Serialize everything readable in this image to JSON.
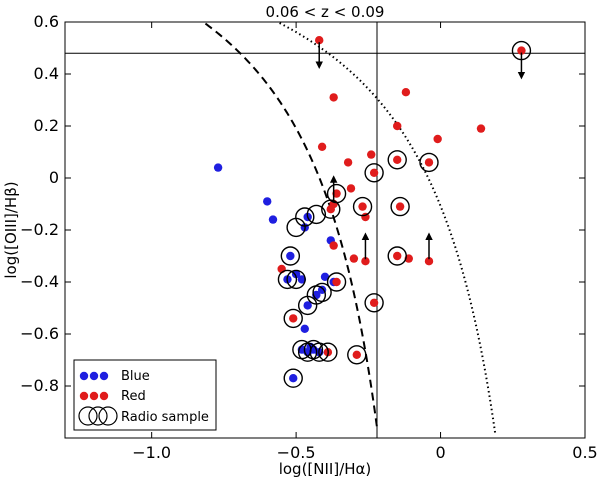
{
  "chart_data": {
    "type": "scatter",
    "title": "0.06 < z < 0.09",
    "xlabel": "log([NII]/Hα)",
    "ylabel": "log([OIII]/Hβ)",
    "xlim": [
      -1.3,
      0.5
    ],
    "ylim": [
      -1.0,
      0.6
    ],
    "xticks": [
      -1.0,
      -0.5,
      0,
      0.5
    ],
    "xtick_labels": [
      "−1.0",
      "−0.5",
      "0",
      "0.5"
    ],
    "yticks": [
      0.6,
      0.4,
      0.2,
      0,
      -0.2,
      -0.4,
      -0.6,
      -0.8
    ],
    "ytick_labels": [
      "0.6",
      "0.4",
      "0.2",
      "0",
      "−0.2",
      "−0.4",
      "−0.6",
      "−0.8"
    ],
    "reference_lines": {
      "horizontal_y": 0.48,
      "vertical_x": -0.22
    },
    "colors": {
      "blue": "#1f1fe0",
      "red": "#e01c1c"
    },
    "legend": {
      "position": "lower-left",
      "entries": [
        {
          "label": "Blue",
          "marker": "blue-dots"
        },
        {
          "label": "Red",
          "marker": "red-dots"
        },
        {
          "label": "Radio sample",
          "marker": "open-circles"
        }
      ]
    },
    "curves": [
      {
        "name": "dashed-demarcation",
        "style": "dashed",
        "x0": 0.05,
        "coef": 0.61,
        "offset": 1.3,
        "xmax": -0.22
      },
      {
        "name": "dotted-demarcation",
        "style": "dotted",
        "x0": 0.47,
        "coef": 0.61,
        "offset": 1.19,
        "xmax": 0.19
      }
    ],
    "series": [
      {
        "name": "Blue",
        "color": "blue",
        "points": [
          {
            "x": -0.77,
            "y": 0.04
          },
          {
            "x": -0.6,
            "y": -0.09
          },
          {
            "x": -0.58,
            "y": -0.16
          },
          {
            "x": -0.47,
            "y": -0.19
          },
          {
            "x": -0.46,
            "y": -0.15
          },
          {
            "x": -0.52,
            "y": -0.3
          },
          {
            "x": -0.5,
            "y": -0.37
          },
          {
            "x": -0.53,
            "y": -0.39
          },
          {
            "x": -0.48,
            "y": -0.39
          },
          {
            "x": -0.4,
            "y": -0.38
          },
          {
            "x": -0.37,
            "y": -0.4
          },
          {
            "x": -0.43,
            "y": -0.45
          },
          {
            "x": -0.41,
            "y": -0.43
          },
          {
            "x": -0.46,
            "y": -0.49
          },
          {
            "x": -0.47,
            "y": -0.58
          },
          {
            "x": -0.48,
            "y": -0.66
          },
          {
            "x": -0.46,
            "y": -0.67
          },
          {
            "x": -0.44,
            "y": -0.66
          },
          {
            "x": -0.42,
            "y": -0.67
          },
          {
            "x": -0.51,
            "y": -0.77
          },
          {
            "x": -0.38,
            "y": -0.24
          },
          {
            "x": -0.45,
            "y": -0.65
          }
        ]
      },
      {
        "name": "Red",
        "color": "red",
        "points": [
          {
            "x": -0.42,
            "y": 0.53,
            "upper_limit": true
          },
          {
            "x": 0.28,
            "y": 0.49,
            "upper_limit": true
          },
          {
            "x": -0.37,
            "y": 0.31
          },
          {
            "x": -0.12,
            "y": 0.33
          },
          {
            "x": -0.15,
            "y": 0.2
          },
          {
            "x": -0.01,
            "y": 0.15
          },
          {
            "x": 0.14,
            "y": 0.19
          },
          {
            "x": -0.41,
            "y": 0.12
          },
          {
            "x": -0.32,
            "y": 0.06
          },
          {
            "x": -0.24,
            "y": 0.09
          },
          {
            "x": -0.15,
            "y": 0.07
          },
          {
            "x": -0.04,
            "y": 0.06
          },
          {
            "x": -0.36,
            "y": -0.06
          },
          {
            "x": -0.23,
            "y": 0.02
          },
          {
            "x": -0.31,
            "y": -0.04
          },
          {
            "x": -0.38,
            "y": -0.12
          },
          {
            "x": -0.27,
            "y": -0.11
          },
          {
            "x": -0.26,
            "y": -0.15
          },
          {
            "x": -0.14,
            "y": -0.11
          },
          {
            "x": -0.37,
            "y": -0.26
          },
          {
            "x": -0.3,
            "y": -0.31
          },
          {
            "x": -0.26,
            "y": -0.32,
            "lower_limit": true
          },
          {
            "x": -0.15,
            "y": -0.3
          },
          {
            "x": -0.11,
            "y": -0.31
          },
          {
            "x": -0.04,
            "y": -0.32,
            "lower_limit": true
          },
          {
            "x": -0.55,
            "y": -0.35
          },
          {
            "x": -0.36,
            "y": -0.4
          },
          {
            "x": -0.23,
            "y": -0.48
          },
          {
            "x": -0.51,
            "y": -0.54
          },
          {
            "x": -0.39,
            "y": -0.67
          },
          {
            "x": -0.29,
            "y": -0.68
          },
          {
            "x": -0.37,
            "y": -0.1,
            "lower_limit": true
          }
        ]
      },
      {
        "name": "Radio sample",
        "color": "open",
        "points": [
          {
            "x": 0.28,
            "y": 0.49
          },
          {
            "x": -0.36,
            "y": -0.06
          },
          {
            "x": -0.23,
            "y": 0.02
          },
          {
            "x": -0.15,
            "y": 0.07
          },
          {
            "x": -0.04,
            "y": 0.06
          },
          {
            "x": -0.27,
            "y": -0.11
          },
          {
            "x": -0.14,
            "y": -0.11
          },
          {
            "x": -0.38,
            "y": -0.12
          },
          {
            "x": -0.47,
            "y": -0.15
          },
          {
            "x": -0.5,
            "y": -0.19
          },
          {
            "x": -0.43,
            "y": -0.14
          },
          {
            "x": -0.52,
            "y": -0.3
          },
          {
            "x": -0.53,
            "y": -0.39
          },
          {
            "x": -0.5,
            "y": -0.39
          },
          {
            "x": -0.36,
            "y": -0.4
          },
          {
            "x": -0.43,
            "y": -0.45
          },
          {
            "x": -0.41,
            "y": -0.44
          },
          {
            "x": -0.46,
            "y": -0.49
          },
          {
            "x": -0.23,
            "y": -0.48
          },
          {
            "x": -0.51,
            "y": -0.54
          },
          {
            "x": -0.15,
            "y": -0.3
          },
          {
            "x": -0.48,
            "y": -0.66
          },
          {
            "x": -0.46,
            "y": -0.67
          },
          {
            "x": -0.44,
            "y": -0.66
          },
          {
            "x": -0.42,
            "y": -0.67
          },
          {
            "x": -0.39,
            "y": -0.67
          },
          {
            "x": -0.29,
            "y": -0.68
          },
          {
            "x": -0.51,
            "y": -0.77
          }
        ]
      }
    ]
  }
}
